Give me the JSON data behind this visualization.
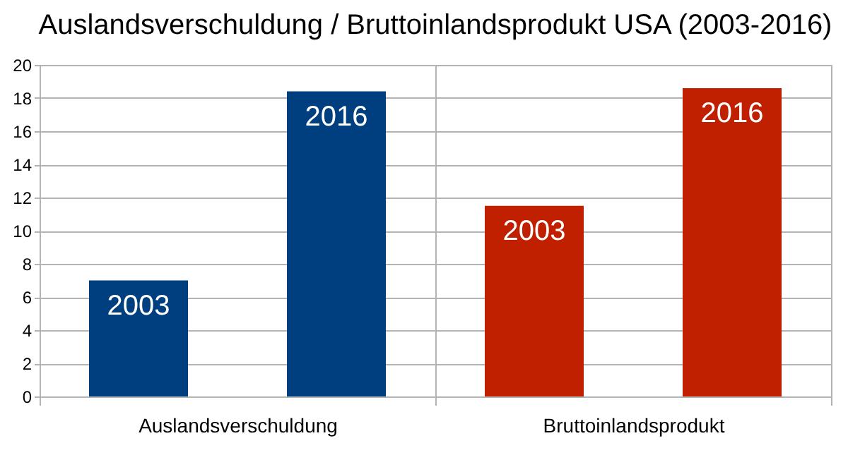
{
  "chart_data": {
    "type": "bar",
    "title": "Auslandsverschuldung / Bruttoinlandsprodukt USA (2003-2016)",
    "categories": [
      "Auslandsverschuldung",
      "Bruttoinlandsprodukt"
    ],
    "series": [
      {
        "name": "2003",
        "colors": [
          "#003f7f",
          "#c01f00"
        ],
        "values": [
          7.0,
          11.5
        ]
      },
      {
        "name": "2016",
        "colors": [
          "#003f7f",
          "#c01f00"
        ],
        "values": [
          18.4,
          18.6
        ]
      }
    ],
    "ylim": [
      0,
      20
    ],
    "yticks": [
      0,
      2,
      4,
      6,
      8,
      10,
      12,
      14,
      16,
      18,
      20
    ],
    "grid": true
  }
}
